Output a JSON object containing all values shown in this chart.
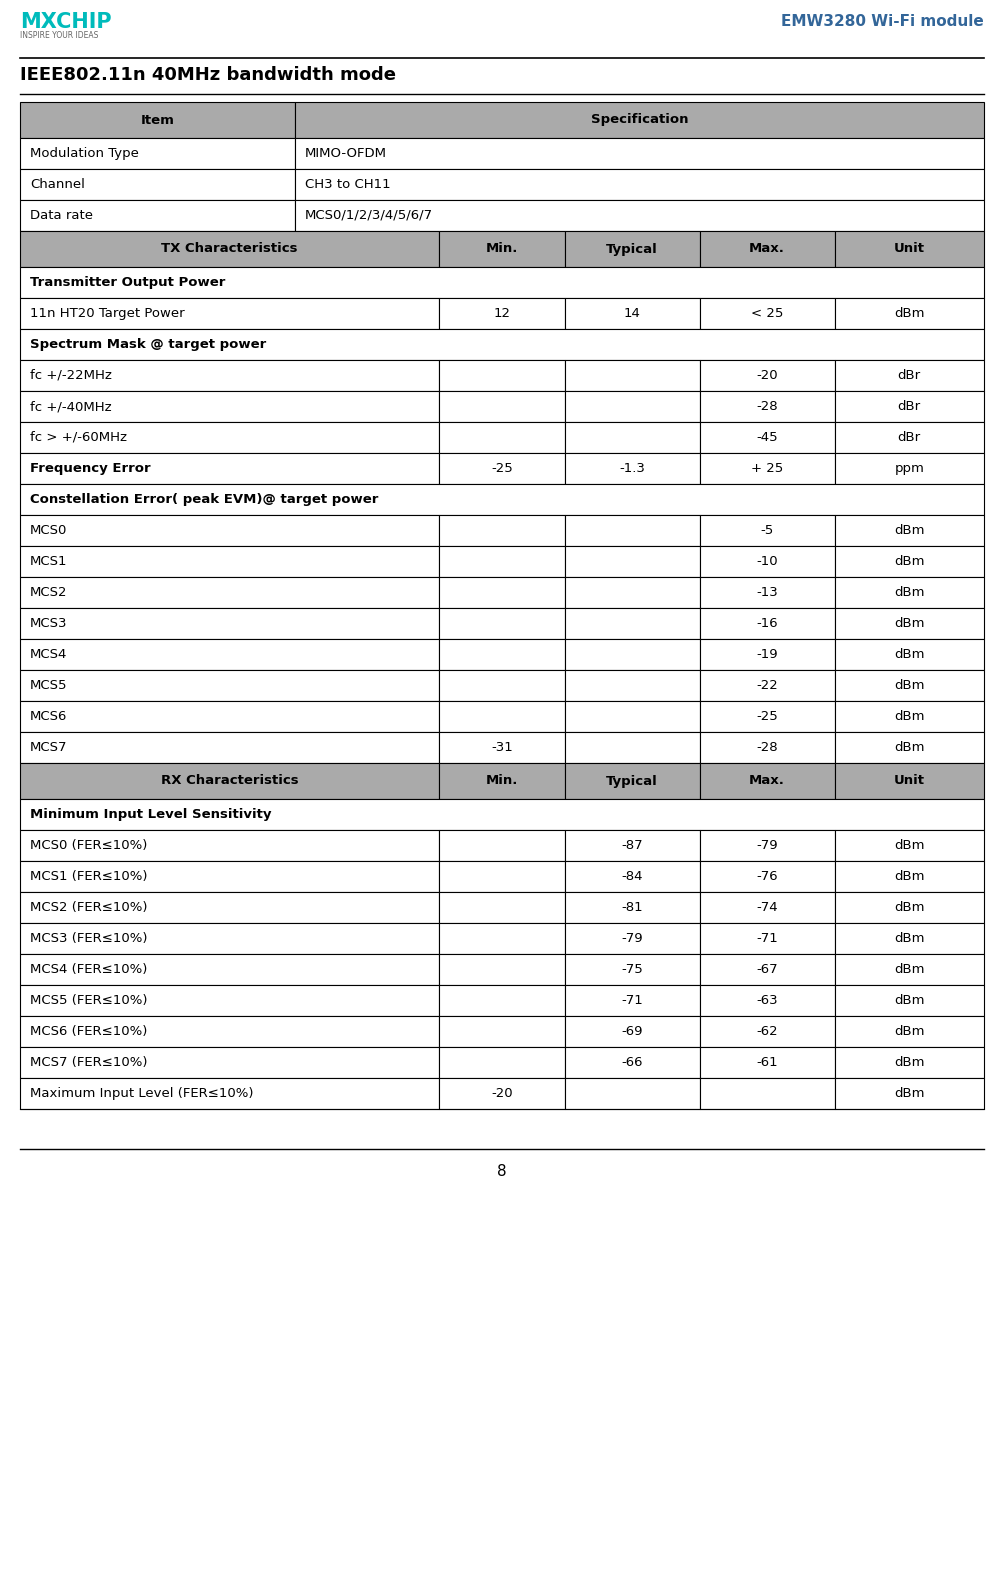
{
  "title": "IEEE802.11n 40MHz bandwidth mode",
  "header_right": "EMW3280 Wi-Fi module",
  "page_number": "8",
  "header_bg": "#aaaaaa",
  "white_bg": "#ffffff",
  "rows": [
    {
      "type": "header2col",
      "col1": "Item",
      "col2": "Specification",
      "bold": true
    },
    {
      "type": "data2col",
      "col1": "Modulation Type",
      "col2": "MIMO-OFDM"
    },
    {
      "type": "data2col",
      "col1": "Channel",
      "col2": "CH3 to CH11"
    },
    {
      "type": "data2col",
      "col1": "Data rate",
      "col2": "MCS0/1/2/3/4/5/6/7"
    },
    {
      "type": "header5col",
      "col1": "TX Characteristics",
      "col2": "Min.",
      "col3": "Typical",
      "col4": "Max.",
      "col5": "Unit",
      "bold": true
    },
    {
      "type": "section_label",
      "text": "Transmitter Output Power",
      "bold": true
    },
    {
      "type": "data5col",
      "col1": "11n HT20 Target Power",
      "col2": "12",
      "col3": "14",
      "col4": "< 25",
      "col5": "dBm"
    },
    {
      "type": "section_label",
      "text": "Spectrum Mask @ target power",
      "bold": true
    },
    {
      "type": "data5col",
      "col1": "fc +/-22MHz",
      "col2": "",
      "col3": "",
      "col4": "-20",
      "col5": "dBr"
    },
    {
      "type": "data5col",
      "col1": "fc +/-40MHz",
      "col2": "",
      "col3": "",
      "col4": "-28",
      "col5": "dBr"
    },
    {
      "type": "data5col",
      "col1": "fc > +/-60MHz",
      "col2": "",
      "col3": "",
      "col4": "-45",
      "col5": "dBr"
    },
    {
      "type": "data5col",
      "col1": "Frequency Error",
      "col2": "-25",
      "col3": "-1.3",
      "col4": "+ 25",
      "col5": "ppm",
      "bold_col1": true
    },
    {
      "type": "section_label",
      "text": "Constellation Error( peak EVM)@ target power",
      "bold": true
    },
    {
      "type": "data5col",
      "col1": "MCS0",
      "col2": "",
      "col3": "",
      "col4": "-5",
      "col5": "dBm"
    },
    {
      "type": "data5col",
      "col1": "MCS1",
      "col2": "",
      "col3": "",
      "col4": "-10",
      "col5": "dBm"
    },
    {
      "type": "data5col",
      "col1": "MCS2",
      "col2": "",
      "col3": "",
      "col4": "-13",
      "col5": "dBm"
    },
    {
      "type": "data5col",
      "col1": "MCS3",
      "col2": "",
      "col3": "",
      "col4": "-16",
      "col5": "dBm"
    },
    {
      "type": "data5col",
      "col1": "MCS4",
      "col2": "",
      "col3": "",
      "col4": "-19",
      "col5": "dBm"
    },
    {
      "type": "data5col",
      "col1": "MCS5",
      "col2": "",
      "col3": "",
      "col4": "-22",
      "col5": "dBm"
    },
    {
      "type": "data5col",
      "col1": "MCS6",
      "col2": "",
      "col3": "",
      "col4": "-25",
      "col5": "dBm"
    },
    {
      "type": "data5col",
      "col1": "MCS7",
      "col2": "-31",
      "col3": "",
      "col4": "-28",
      "col5": "dBm"
    },
    {
      "type": "header5col",
      "col1": "RX Characteristics",
      "col2": "Min.",
      "col3": "Typical",
      "col4": "Max.",
      "col5": "Unit",
      "bold": true
    },
    {
      "type": "section_label",
      "text": "Minimum Input Level Sensitivity",
      "bold": true
    },
    {
      "type": "data5col",
      "col1": "MCS0 (FER≤10%)",
      "col2": "",
      "col3": "-87",
      "col4": "-79",
      "col5": "dBm"
    },
    {
      "type": "data5col",
      "col1": "MCS1 (FER≤10%)",
      "col2": "",
      "col3": "-84",
      "col4": "-76",
      "col5": "dBm"
    },
    {
      "type": "data5col",
      "col1": "MCS2 (FER≤10%)",
      "col2": "",
      "col3": "-81",
      "col4": "-74",
      "col5": "dBm"
    },
    {
      "type": "data5col",
      "col1": "MCS3 (FER≤10%)",
      "col2": "",
      "col3": "-79",
      "col4": "-71",
      "col5": "dBm"
    },
    {
      "type": "data5col",
      "col1": "MCS4 (FER≤10%)",
      "col2": "",
      "col3": "-75",
      "col4": "-67",
      "col5": "dBm"
    },
    {
      "type": "data5col",
      "col1": "MCS5 (FER≤10%)",
      "col2": "",
      "col3": "-71",
      "col4": "-63",
      "col5": "dBm"
    },
    {
      "type": "data5col",
      "col1": "MCS6 (FER≤10%)",
      "col2": "",
      "col3": "-69",
      "col4": "-62",
      "col5": "dBm"
    },
    {
      "type": "data5col",
      "col1": "MCS7 (FER≤10%)",
      "col2": "",
      "col3": "-66",
      "col4": "-61",
      "col5": "dBm"
    },
    {
      "type": "data5col",
      "col1": "Maximum Input Level (FER≤10%)",
      "col2": "-20",
      "col3": "",
      "col4": "",
      "col5": "dBm"
    }
  ]
}
